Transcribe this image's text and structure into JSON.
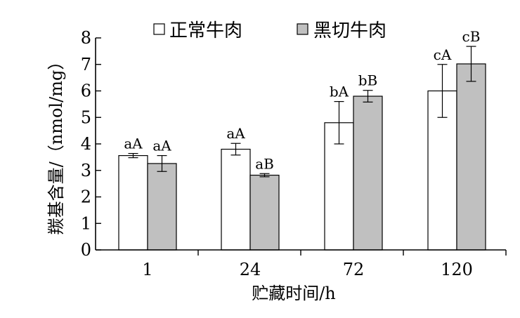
{
  "chart_data": {
    "type": "bar",
    "title": "",
    "xlabel": "贮藏时间/h",
    "ylabel": "羰基含量/（nmol/mg）",
    "categories": [
      "1",
      "24",
      "72",
      "120"
    ],
    "ylim": [
      0,
      8
    ],
    "yticks": [
      "0",
      "1",
      "2",
      "3",
      "4",
      "5",
      "6",
      "7",
      "8"
    ],
    "grid": false,
    "legend_position": "top",
    "series": [
      {
        "name": "正常牛肉",
        "color": "#ffffff",
        "values": [
          3.56,
          3.8,
          4.8,
          6.0
        ],
        "errors": [
          0.08,
          0.22,
          0.8,
          1.0
        ],
        "labels": [
          "aA",
          "aA",
          "bA",
          "cA"
        ]
      },
      {
        "name": "黑切牛肉",
        "color": "#c0c0c0",
        "values": [
          3.26,
          2.82,
          5.8,
          7.02
        ],
        "errors": [
          0.3,
          0.06,
          0.22,
          0.66
        ],
        "labels": [
          "aA",
          "aB",
          "bB",
          "cB"
        ]
      }
    ]
  }
}
